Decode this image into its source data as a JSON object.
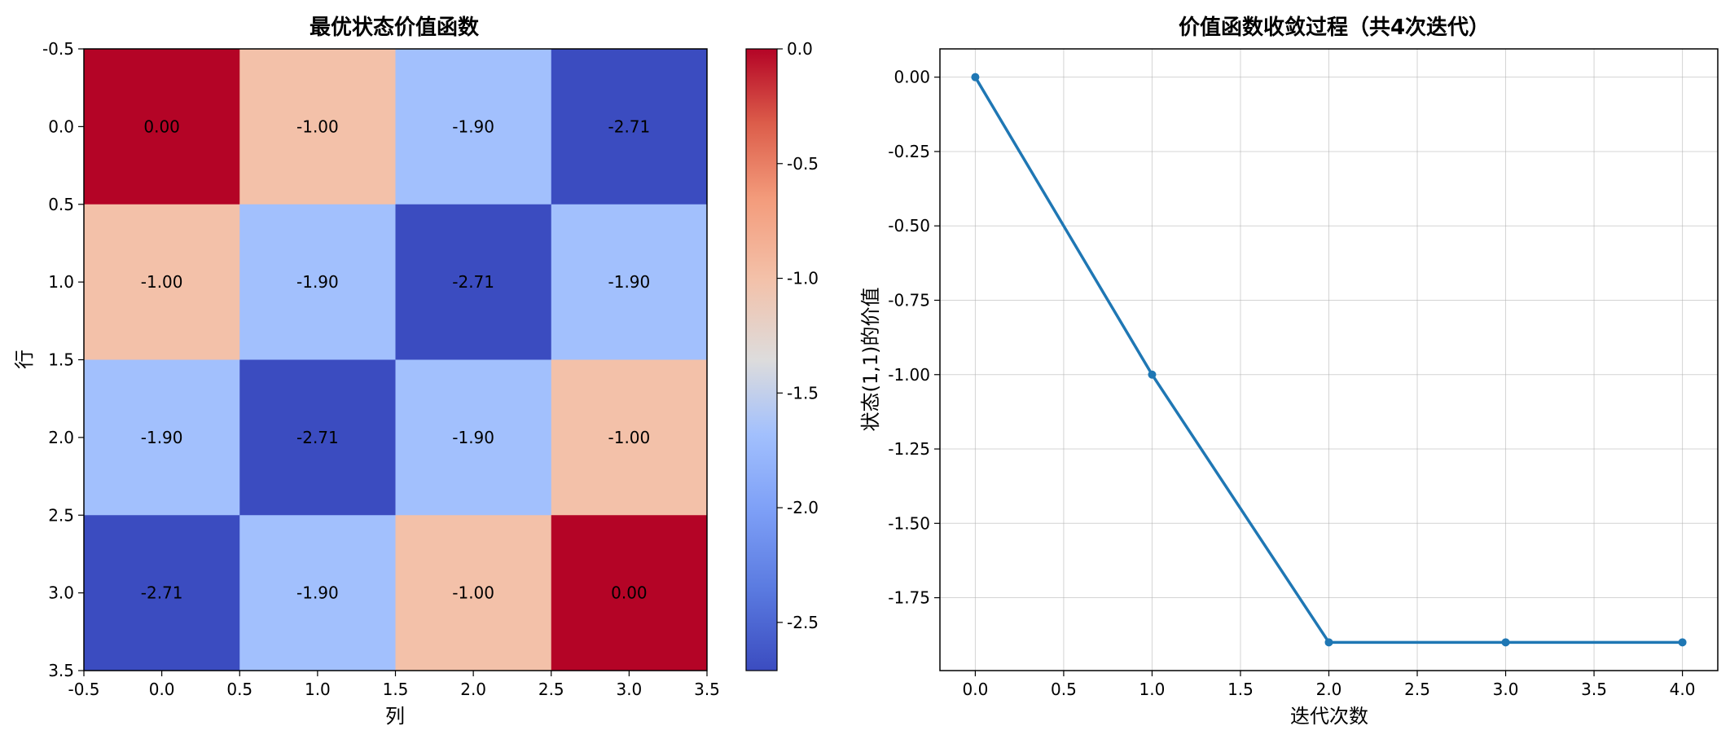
{
  "chart_data": [
    {
      "type": "heatmap",
      "title": "最优状态价值函数",
      "xlabel": "列",
      "ylabel": "行",
      "x_ticks": [
        "-0.5",
        "0.0",
        "0.5",
        "1.0",
        "1.5",
        "2.0",
        "2.5",
        "3.0",
        "3.5"
      ],
      "y_ticks": [
        "-0.5",
        "0.0",
        "0.5",
        "1.0",
        "1.5",
        "2.0",
        "2.5",
        "3.0",
        "3.5"
      ],
      "values": [
        [
          0.0,
          -1.0,
          -1.9,
          -2.71
        ],
        [
          -1.0,
          -1.9,
          -2.71,
          -1.9
        ],
        [
          -1.9,
          -2.71,
          -1.9,
          -1.0
        ],
        [
          -2.71,
          -1.9,
          -1.0,
          0.0
        ]
      ],
      "cell_labels": [
        [
          "0.00",
          "-1.00",
          "-1.90",
          "-2.71"
        ],
        [
          "-1.00",
          "-1.90",
          "-2.71",
          "-1.90"
        ],
        [
          "-1.90",
          "-2.71",
          "-1.90",
          "-1.00"
        ],
        [
          "-2.71",
          "-1.90",
          "-1.00",
          "0.00"
        ]
      ],
      "colormap": "coolwarm",
      "value_range": [
        -2.71,
        0.0
      ],
      "colorbar_ticks": [
        "0.0",
        "-0.5",
        "-1.0",
        "-1.5",
        "-2.0",
        "-2.5"
      ],
      "colors": {
        "0.00": "#b40426",
        "-1.00": "#f3c1a9",
        "-1.90": "#a2c0fd",
        "-2.71": "#3b4cc0"
      }
    },
    {
      "type": "line",
      "title": "价值函数收敛过程（共4次迭代）",
      "xlabel": "迭代次数",
      "ylabel": "状态(1,1)的价值",
      "x": [
        0,
        1,
        2,
        3,
        4
      ],
      "y": [
        0.0,
        -1.0,
        -1.9,
        -1.9,
        -1.9
      ],
      "x_ticks": [
        "0.0",
        "0.5",
        "1.0",
        "1.5",
        "2.0",
        "2.5",
        "3.0",
        "3.5",
        "4.0"
      ],
      "y_ticks": [
        "0.00",
        "-0.25",
        "-0.50",
        "-0.75",
        "-1.00",
        "-1.25",
        "-1.50",
        "-1.75"
      ],
      "xlim": [
        -0.2,
        4.2
      ],
      "ylim": [
        -1.995,
        0.095
      ],
      "grid": true,
      "line_color": "#1f77b4"
    }
  ]
}
